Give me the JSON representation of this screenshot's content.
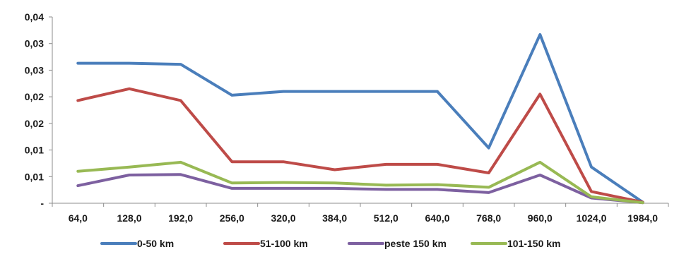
{
  "chart_data": {
    "type": "line",
    "title": "",
    "xlabel": "",
    "ylabel": "",
    "categories": [
      "64,0",
      "128,0",
      "192,0",
      "256,0",
      "320,0",
      "384,0",
      "512,0",
      "640,0",
      "768,0",
      "960,0",
      "1024,0",
      "1984,0"
    ],
    "y_tick_labels": [
      "-",
      "0,01",
      "0,01",
      "0,02",
      "0,02",
      "0,03",
      "0,03",
      "0,04"
    ],
    "ylim": [
      0,
      0.035
    ],
    "grid": false,
    "legend_position": "bottom",
    "series": [
      {
        "name": "0-50 km",
        "color": "#4a7ebb",
        "values": [
          0.0263,
          0.0263,
          0.0261,
          0.0203,
          0.021,
          0.021,
          0.021,
          0.021,
          0.0104,
          0.0317,
          0.0068,
          0.0002
        ]
      },
      {
        "name": "51-100 km",
        "color": "#be4b48",
        "values": [
          0.0193,
          0.0215,
          0.0193,
          0.0078,
          0.0078,
          0.0063,
          0.0073,
          0.0073,
          0.0057,
          0.0205,
          0.0022,
          0.0002
        ]
      },
      {
        "name": "peste 150 km",
        "color": "#7d60a0",
        "values": [
          0.0033,
          0.0053,
          0.0054,
          0.0028,
          0.0028,
          0.0028,
          0.0026,
          0.0026,
          0.002,
          0.0053,
          0.001,
          0.0001
        ]
      },
      {
        "name": "101-150 km",
        "color": "#98b954",
        "values": [
          0.006,
          0.0068,
          0.0077,
          0.0038,
          0.0039,
          0.0038,
          0.0034,
          0.0035,
          0.003,
          0.0077,
          0.0012,
          0.0001
        ]
      }
    ]
  }
}
